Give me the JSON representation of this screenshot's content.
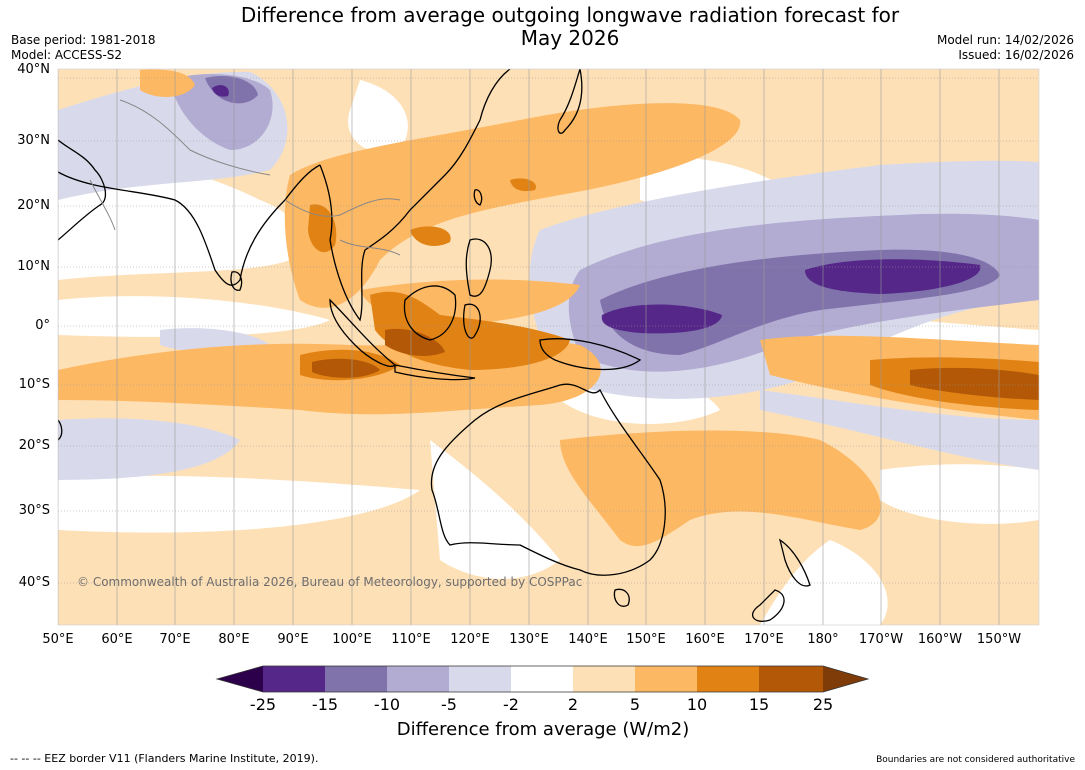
{
  "header": {
    "title_line1": "Difference from average outgoing longwave radiation forecast for",
    "title_line2": "May 2026",
    "base_period": "Base period: 1981-2018",
    "model": "Model: ACCESS-S2",
    "model_run": "Model run: 14/02/2026",
    "issued": "Issued: 16/02/2026"
  },
  "map": {
    "lat_labels": [
      "40°N",
      "30°N",
      "20°N",
      "10°N",
      "0°",
      "10°S",
      "20°S",
      "30°S",
      "40°S"
    ],
    "lon_labels": [
      "50°E",
      "60°E",
      "70°E",
      "80°E",
      "90°E",
      "100°E",
      "110°E",
      "120°E",
      "130°E",
      "140°E",
      "150°E",
      "160°E",
      "170°E",
      "180°",
      "170°W",
      "160°W",
      "150°W"
    ],
    "copyright": "© Commonwealth of Australia 2026, Bureau of Meteorology, supported by COSPPac"
  },
  "colorbar": {
    "ticks": [
      "-25",
      "-15",
      "-10",
      "-5",
      "-2",
      "2",
      "5",
      "10",
      "15",
      "25"
    ],
    "colors": [
      "#2d004b",
      "#542788",
      "#8073ac",
      "#b2abd2",
      "#d8daeb",
      "#ffffff",
      "#fee0b6",
      "#fdb863",
      "#e08214",
      "#b35806",
      "#7f3b08"
    ],
    "label": "Difference from average (W/m2)"
  },
  "footer": {
    "legend": "--  --  -- EEZ border V11 (Flanders Marine Institute, 2019).",
    "disclaimer": "Boundaries are not considered authoritative"
  }
}
